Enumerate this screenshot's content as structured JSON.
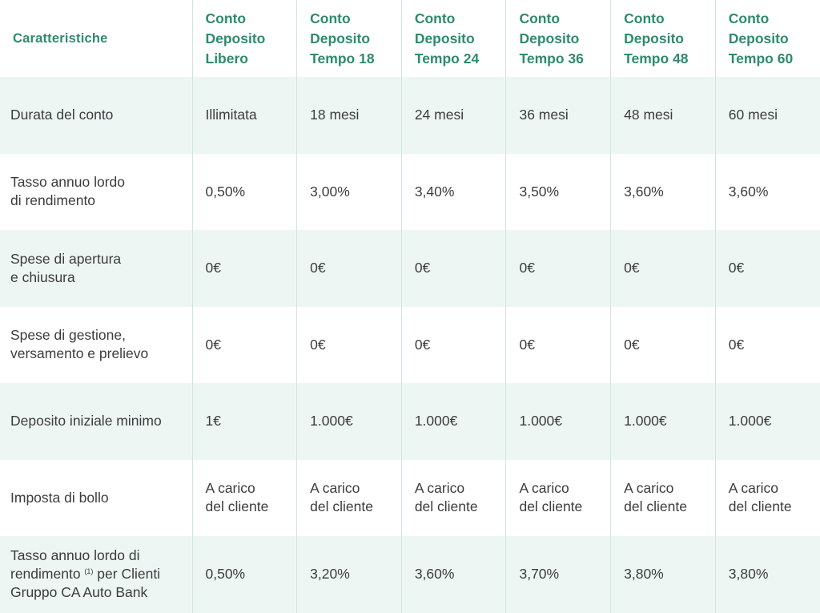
{
  "header": {
    "feature_label": "Caratteristiche",
    "products": [
      {
        "line1": "Conto",
        "line2": "Deposito",
        "line3": "Libero"
      },
      {
        "line1": "Conto",
        "line2": "Deposito",
        "line3": "Tempo 18"
      },
      {
        "line1": "Conto",
        "line2": "Deposito",
        "line3": "Tempo 24"
      },
      {
        "line1": "Conto",
        "line2": "Deposito",
        "line3": "Tempo 36"
      },
      {
        "line1": "Conto",
        "line2": "Deposito",
        "line3": "Tempo 48"
      },
      {
        "line1": "Conto",
        "line2": "Deposito",
        "line3": "Tempo 60"
      }
    ]
  },
  "rows": [
    {
      "label": [
        "Durata del conto"
      ],
      "values": [
        "Illimitata",
        "18 mesi",
        "24 mesi",
        "36 mesi",
        "48 mesi",
        "60 mesi"
      ]
    },
    {
      "label": [
        "Tasso annuo lordo",
        "di rendimento"
      ],
      "values": [
        "0,50%",
        "3,00%",
        "3,40%",
        "3,50%",
        "3,60%",
        "3,60%"
      ]
    },
    {
      "label": [
        "Spese di apertura",
        "e chiusura"
      ],
      "values": [
        "0€",
        "0€",
        "0€",
        "0€",
        "0€",
        "0€"
      ]
    },
    {
      "label": [
        "Spese di gestione,",
        "versamento e prelievo"
      ],
      "values": [
        "0€",
        "0€",
        "0€",
        "0€",
        "0€",
        "0€"
      ]
    },
    {
      "label": [
        "Deposito iniziale minimo"
      ],
      "values": [
        "1€",
        "1.000€",
        "1.000€",
        "1.000€",
        "1.000€",
        "1.000€"
      ]
    },
    {
      "label": [
        "Imposta di bollo"
      ],
      "values": [
        [
          "A carico",
          "del cliente"
        ],
        [
          "A carico",
          "del cliente"
        ],
        [
          "A carico",
          "del cliente"
        ],
        [
          "A carico",
          "del cliente"
        ],
        [
          "A carico",
          "del cliente"
        ],
        [
          "A carico",
          "del cliente"
        ]
      ]
    },
    {
      "label_parts": {
        "line1": "Tasso annuo lordo di",
        "line2_pre": "rendimento ",
        "footnote": "(1)",
        "line2_post": " per Clienti",
        "line3": "Gruppo CA Auto Bank"
      },
      "values": [
        "0,50%",
        "3,20%",
        "3,60%",
        "3,70%",
        "3,80%",
        "3,80%"
      ]
    }
  ]
}
